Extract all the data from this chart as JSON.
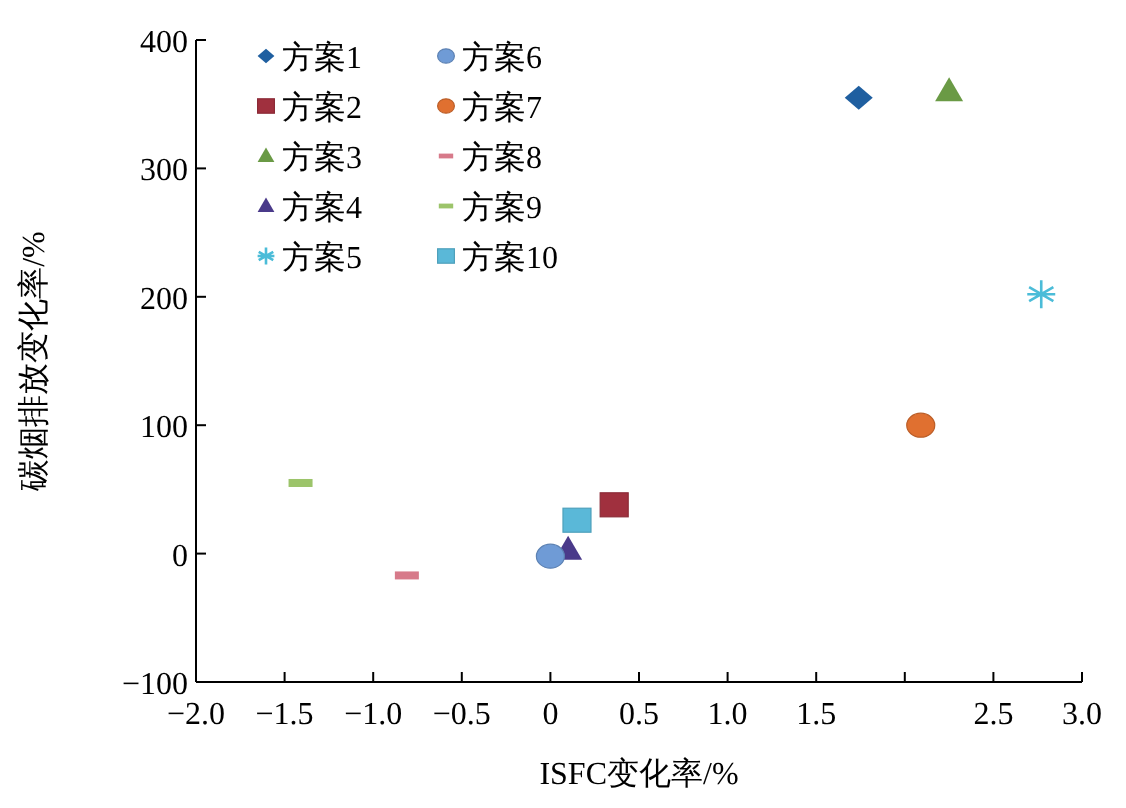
{
  "chart_data": {
    "type": "scatter",
    "xlabel": "ISFC变化率/%",
    "ylabel": "碳烟排放变化率/%",
    "xlim": [
      -2,
      3
    ],
    "xticks": [
      {
        "value": -2,
        "label": "−2.0"
      },
      {
        "value": -1.5,
        "label": "−1.5"
      },
      {
        "value": -1,
        "label": "−1.0"
      },
      {
        "value": -0.5,
        "label": "−0.5"
      },
      0,
      {
        "value": 0.5,
        "label": "0.5"
      },
      {
        "value": 1,
        "label": "1.0"
      },
      {
        "value": 1.5,
        "label": "1.5"
      },
      {
        "value": 2,
        "label": null
      },
      {
        "value": 2.5,
        "label": "2.5"
      },
      {
        "value": 3,
        "label": "3.0"
      }
    ],
    "ylim": [
      -100,
      400
    ],
    "yticks": [
      {
        "value": -100,
        "label": "−100"
      },
      0,
      100,
      200,
      300,
      400
    ],
    "grid": false,
    "legend": "top left",
    "series": [
      {
        "name": "方案1",
        "color": "#1f5fa0",
        "marker": "diamond",
        "x": [
          1.74
        ],
        "values": [
          355
        ]
      },
      {
        "name": "方案2",
        "color": "#a0303e",
        "marker": "square",
        "x": [
          0.36
        ],
        "values": [
          38
        ]
      },
      {
        "name": "方案3",
        "color": "#6a9a45",
        "marker": "triangle",
        "x": [
          2.25
        ],
        "values": [
          360
        ]
      },
      {
        "name": "方案4",
        "color": "#4a3a8a",
        "marker": "triangle",
        "x": [
          0.1
        ],
        "values": [
          3
        ]
      },
      {
        "name": "方案5",
        "color": "#4bbcd8",
        "marker": "cross",
        "x": [
          2.77
        ],
        "values": [
          202
        ]
      },
      {
        "name": "方案6",
        "color": "#6f9bd6",
        "marker": "circle",
        "x": [
          0
        ],
        "values": [
          -2
        ]
      },
      {
        "name": "方案7",
        "color": "#e07030",
        "marker": "circle",
        "x": [
          2.09
        ],
        "values": [
          100
        ]
      },
      {
        "name": "方案8",
        "color": "#d77a8a",
        "x": [
          -0.81
        ],
        "values": [
          -17
        ]
      },
      {
        "name": "方案9",
        "color": "#9cc46a",
        "x": [
          -1.41
        ],
        "values": [
          55
        ]
      },
      {
        "name": "方案10",
        "color": "#5ab8d8",
        "marker": "square",
        "x": [
          0.15
        ],
        "values": [
          26
        ]
      }
    ]
  }
}
